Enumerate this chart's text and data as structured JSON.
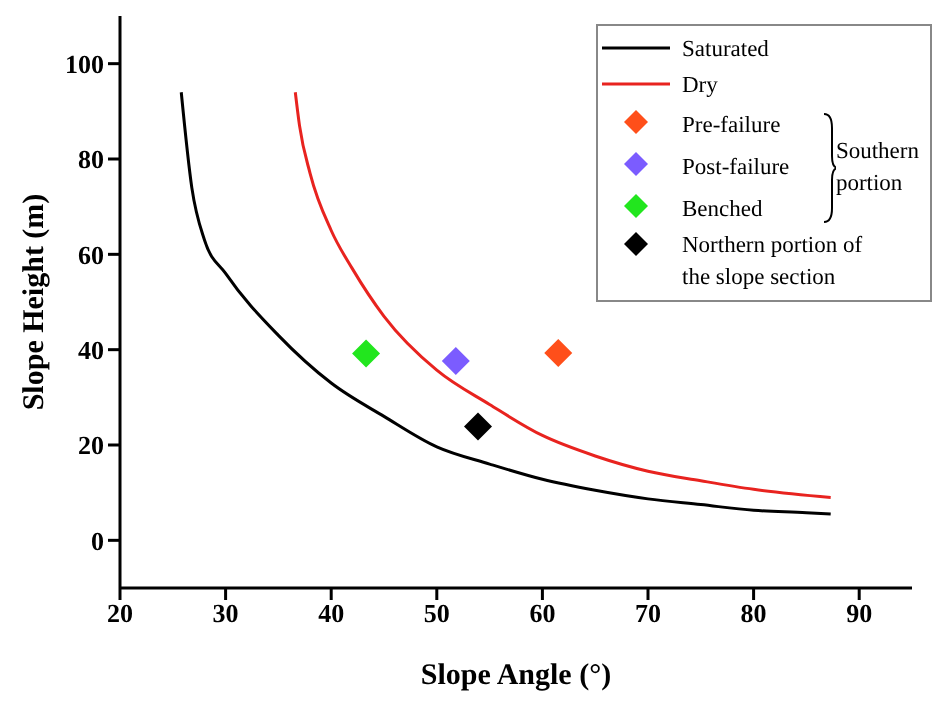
{
  "chart_data": {
    "type": "line",
    "xlabel": "Slope Angle (°)",
    "ylabel": "Slope Height (m)",
    "xlim": [
      20,
      95
    ],
    "ylim": [
      -10,
      110
    ],
    "xticks": [
      20,
      30,
      40,
      50,
      60,
      70,
      80,
      90
    ],
    "yticks": [
      0,
      20,
      40,
      60,
      80,
      100
    ],
    "grid": false,
    "legend": "top right",
    "annotations": [
      "Southern portion"
    ],
    "series": [
      {
        "name": "Saturated",
        "color": "#000000",
        "x": [
          25.8,
          26.8,
          28,
          30,
          35,
          40,
          45,
          50,
          55,
          60,
          65,
          70,
          75,
          80,
          85,
          87.3
        ],
        "values": [
          94,
          74,
          63,
          56,
          43,
          33,
          26,
          19.6,
          16,
          12.8,
          10.5,
          8.7,
          7.5,
          6.3,
          5.8,
          5.5
        ]
      },
      {
        "name": "Dry",
        "color": "#e8231f",
        "x": [
          36.6,
          37,
          38,
          40,
          42,
          45,
          50,
          55,
          60,
          65,
          70,
          75,
          80,
          87.3
        ],
        "values": [
          94,
          87,
          77,
          65,
          57,
          47,
          35.7,
          28.5,
          22,
          17.7,
          14.5,
          12.5,
          10.7,
          9
        ]
      },
      {
        "name": "Pre-failure",
        "type": "scatter",
        "marker": "diamond",
        "color": "#ff4f1a",
        "x": [
          61.5
        ],
        "values": [
          39.3
        ]
      },
      {
        "name": "Post-failure",
        "type": "scatter",
        "marker": "diamond",
        "color": "#7b5cff",
        "x": [
          51.8
        ],
        "values": [
          37.6
        ]
      },
      {
        "name": "Benched",
        "type": "scatter",
        "marker": "diamond",
        "color": "#22e61e",
        "x": [
          43.3
        ],
        "values": [
          39.2
        ]
      },
      {
        "name": "Northern portion of the slope section",
        "type": "scatter",
        "marker": "diamond",
        "color": "#000000",
        "x": [
          53.9
        ],
        "values": [
          23.9
        ]
      }
    ]
  }
}
